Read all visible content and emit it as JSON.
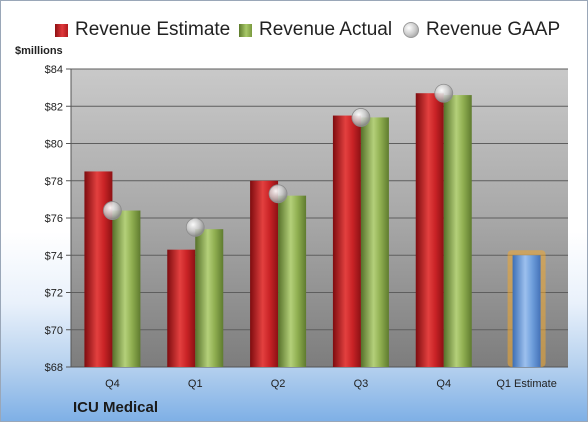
{
  "chart_data": {
    "type": "bar",
    "ylabel": "$millions",
    "ylim": [
      68,
      84
    ],
    "yticks": [
      "$68",
      "$70",
      "$72",
      "$74",
      "$76",
      "$78",
      "$80",
      "$82",
      "$84"
    ],
    "categories": [
      "Q4",
      "Q1",
      "Q2",
      "Q3",
      "Q4",
      "Q1 Estimate"
    ],
    "series": [
      {
        "name": "Revenue Estimate",
        "type": "bar",
        "color": "#c41e22",
        "values": [
          78.5,
          74.3,
          78.0,
          81.5,
          82.7,
          null
        ]
      },
      {
        "name": "Revenue Actual",
        "type": "bar",
        "color": "#8aa94a",
        "values": [
          76.4,
          75.4,
          77.2,
          81.4,
          82.6,
          null
        ]
      },
      {
        "name": "Revenue GAAP",
        "type": "scatter",
        "color": "#b8b8b8",
        "values": [
          76.4,
          75.5,
          77.3,
          81.4,
          82.7,
          null
        ]
      }
    ],
    "estimate": {
      "category": "Q1 Estimate",
      "value": 74.0,
      "color": "#6f9fdc",
      "highlight_color": "#f0a830"
    },
    "legend": "top",
    "grid": true
  },
  "legend": {
    "estimate_label": "Revenue Estimate",
    "actual_label": "Revenue Actual",
    "gaap_label": "Revenue GAAP"
  },
  "axis": {
    "unit_label": "$millions"
  },
  "footer": {
    "company": "ICU Medical"
  }
}
